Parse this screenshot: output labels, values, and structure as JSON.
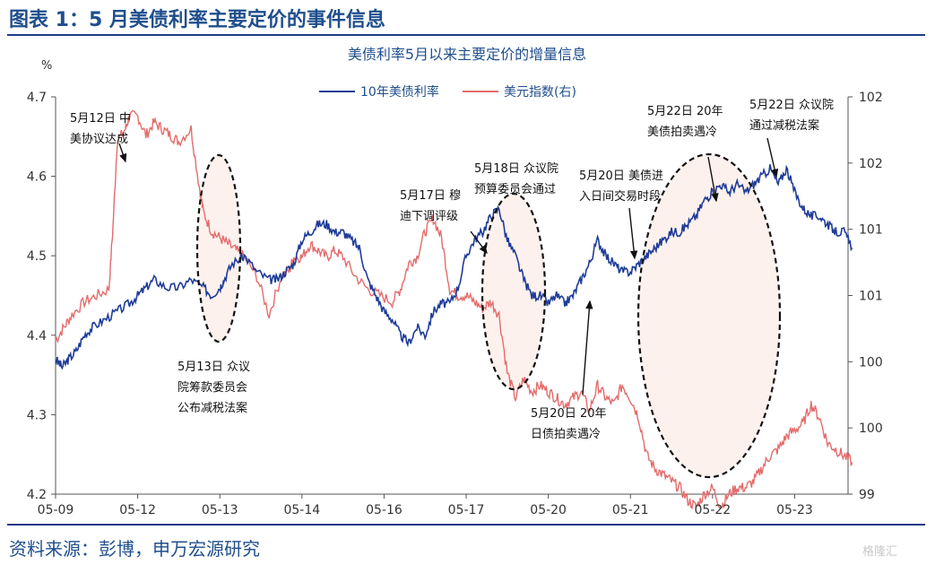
{
  "figure_title": "图表 1：5 月美债利率主要定价的事件信息",
  "source_note": "资料来源：彭博，申万宏源研究",
  "watermark": "格隆汇",
  "colors": {
    "yield": "#1f3c99",
    "dxy": "#e36c6c",
    "title": "#1f4e8c",
    "highlight": "#fdeeea"
  },
  "chart_data": {
    "type": "line",
    "title": "美债利率5月以来主要定价的增量信息",
    "y_unit": "%",
    "x_ticks": [
      "05-09",
      "05-12",
      "05-13",
      "05-14",
      "05-16",
      "05-17",
      "05-20",
      "05-21",
      "05-22",
      "05-23"
    ],
    "y_left": {
      "min": 4.2,
      "max": 4.7,
      "ticks": [
        "4.2",
        "4.3",
        "4.4",
        "4.5",
        "4.6",
        "4.7"
      ]
    },
    "y_right": {
      "min": 99.0,
      "max": 102.1,
      "ticks": [
        "99",
        "100",
        "100",
        "101",
        "101",
        "102",
        "102"
      ]
    },
    "legend": {
      "position": "top-center",
      "entries": [
        "10年美债利率",
        "美元指数(右)"
      ]
    },
    "series": [
      {
        "name": "10年美债利率",
        "axis": "left",
        "x": [
          0,
          0.08,
          0.16,
          0.25,
          0.35,
          0.45,
          0.6,
          0.75,
          0.9,
          1.0,
          1.1,
          1.2,
          1.35,
          1.5,
          1.65,
          1.8,
          1.9,
          2.0,
          2.05,
          2.15,
          2.3,
          2.45,
          2.6,
          2.7,
          2.8,
          2.9,
          3.0,
          3.1,
          3.2,
          3.3,
          3.4,
          3.5,
          3.6,
          3.7,
          3.8,
          3.9,
          4.0,
          4.1,
          4.2,
          4.3,
          4.4,
          4.5,
          4.6,
          4.7,
          4.8,
          4.9,
          5.0,
          5.1,
          5.2,
          5.3,
          5.4,
          5.5,
          5.6,
          5.7,
          5.8,
          5.9,
          6.0,
          6.1,
          6.2,
          6.3,
          6.4,
          6.5,
          6.6,
          6.7,
          6.8,
          6.9,
          7.0,
          7.1,
          7.2,
          7.3,
          7.4,
          7.5,
          7.6,
          7.7,
          7.8,
          7.9,
          8.0,
          8.1,
          8.2,
          8.3,
          8.4,
          8.5,
          8.6,
          8.7,
          8.8,
          8.9,
          9.0,
          9.1,
          9.2,
          9.3,
          9.4,
          9.5,
          9.6,
          9.7
        ],
        "y": [
          4.37,
          4.36,
          4.37,
          4.38,
          4.4,
          4.41,
          4.42,
          4.43,
          4.44,
          4.45,
          4.46,
          4.47,
          4.46,
          4.46,
          4.47,
          4.46,
          4.45,
          4.46,
          4.47,
          4.49,
          4.5,
          4.48,
          4.47,
          4.47,
          4.48,
          4.49,
          4.52,
          4.53,
          4.54,
          4.54,
          4.53,
          4.53,
          4.52,
          4.51,
          4.47,
          4.45,
          4.43,
          4.42,
          4.4,
          4.39,
          4.41,
          4.4,
          4.43,
          4.44,
          4.44,
          4.46,
          4.5,
          4.52,
          4.53,
          4.55,
          4.56,
          4.52,
          4.5,
          4.47,
          4.45,
          4.45,
          4.44,
          4.45,
          4.44,
          4.45,
          4.47,
          4.49,
          4.52,
          4.5,
          4.49,
          4.48,
          4.48,
          4.49,
          4.5,
          4.51,
          4.52,
          4.53,
          4.53,
          4.54,
          4.55,
          4.57,
          4.58,
          4.59,
          4.58,
          4.59,
          4.58,
          4.59,
          4.6,
          4.61,
          4.59,
          4.61,
          4.58,
          4.56,
          4.55,
          4.55,
          4.54,
          4.53,
          4.53,
          4.51
        ]
      },
      {
        "name": "美元指数(右)",
        "axis": "right",
        "x": [
          0,
          0.1,
          0.2,
          0.35,
          0.5,
          0.65,
          0.7,
          0.75,
          0.85,
          0.9,
          1.0,
          1.1,
          1.2,
          1.3,
          1.4,
          1.5,
          1.65,
          1.75,
          1.8,
          1.9,
          2.0,
          2.1,
          2.2,
          2.3,
          2.45,
          2.6,
          2.75,
          2.85,
          2.9,
          3.0,
          3.1,
          3.2,
          3.3,
          3.4,
          3.5,
          3.65,
          3.8,
          3.95,
          4.1,
          4.2,
          4.3,
          4.4,
          4.5,
          4.6,
          4.7,
          4.8,
          4.9,
          5.0,
          5.1,
          5.2,
          5.3,
          5.4,
          5.5,
          5.6,
          5.7,
          5.8,
          5.9,
          6.0,
          6.1,
          6.2,
          6.3,
          6.4,
          6.5,
          6.6,
          6.7,
          6.8,
          6.9,
          7.0,
          7.1,
          7.2,
          7.3,
          7.4,
          7.5,
          7.6,
          7.7,
          7.8,
          7.9,
          8.0,
          8.1,
          8.2,
          8.3,
          8.4,
          8.5,
          8.6,
          8.7,
          8.8,
          8.9,
          9.0,
          9.1,
          9.2,
          9.3,
          9.4,
          9.5,
          9.6,
          9.7
        ],
        "y": [
          100.2,
          100.3,
          100.4,
          100.5,
          100.55,
          100.6,
          101.1,
          101.75,
          101.85,
          101.95,
          101.95,
          101.8,
          101.9,
          101.85,
          101.8,
          101.75,
          101.85,
          101.4,
          101.2,
          101.05,
          101.0,
          100.95,
          100.9,
          100.85,
          100.7,
          100.4,
          100.7,
          100.75,
          100.85,
          100.85,
          100.95,
          100.9,
          100.85,
          100.9,
          100.85,
          100.7,
          100.6,
          100.55,
          100.5,
          100.6,
          100.8,
          100.85,
          101.05,
          101.15,
          101.0,
          100.6,
          100.55,
          100.55,
          100.5,
          100.45,
          100.5,
          100.4,
          99.95,
          99.75,
          99.9,
          99.8,
          99.85,
          99.8,
          99.75,
          99.7,
          99.75,
          99.8,
          99.65,
          99.85,
          99.75,
          99.7,
          99.85,
          99.75,
          99.6,
          99.3,
          99.2,
          99.15,
          99.1,
          99.05,
          98.95,
          98.9,
          99.0,
          99.05,
          98.9,
          99.0,
          99.05,
          99.05,
          99.1,
          99.2,
          99.3,
          99.35,
          99.45,
          99.5,
          99.55,
          99.7,
          99.6,
          99.4,
          99.35,
          99.3,
          99.25
        ]
      }
    ],
    "annotations": [
      {
        "text": [
          "5月12日 中",
          "美协议达成"
        ]
      },
      {
        "text": [
          "5月13日 众议",
          "院筹款委员会",
          "公布减税法案"
        ]
      },
      {
        "text": [
          "5月17日 穆",
          "迪下调评级"
        ]
      },
      {
        "text": [
          "5月18日 众议院",
          "预算委员会通过"
        ]
      },
      {
        "text": [
          "5月20日 美债进",
          "入日间交易时段"
        ]
      },
      {
        "text": [
          "5月20日 20年",
          "日债拍卖遇冷"
        ]
      },
      {
        "text": [
          "5月22日 20年",
          "美债拍卖遇冷"
        ]
      },
      {
        "text": [
          "5月22日 众议院",
          "通过减税法案"
        ]
      }
    ]
  }
}
